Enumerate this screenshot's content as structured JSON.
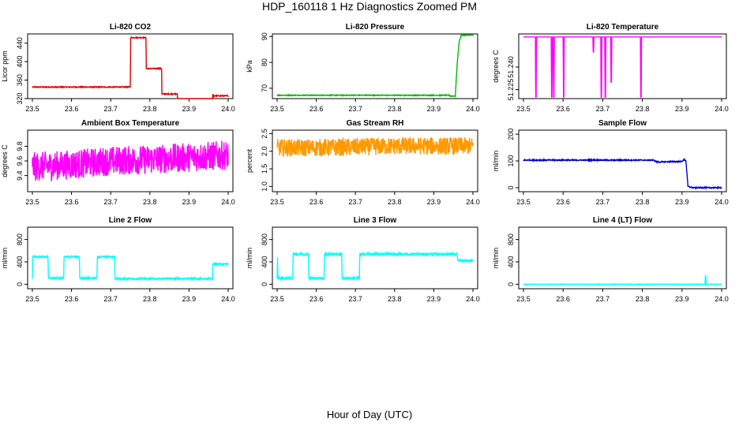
{
  "figure": {
    "title": "HDP_160118  1 Hz Diagnostics Zoomed PM",
    "xlabel": "Hour of Day (UTC)"
  },
  "chart_data": [
    {
      "type": "line",
      "title": "Li-820 CO2",
      "ylabel": "Licor ppm",
      "xlim": [
        23.5,
        24.0
      ],
      "ylim": [
        320,
        460
      ],
      "xticks": [
        23.5,
        23.6,
        23.7,
        23.8,
        23.9,
        24.0
      ],
      "yticks": [
        320,
        360,
        400,
        440
      ],
      "color": "#dd0000",
      "noise": 1,
      "series": [
        {
          "x": [
            23.5,
            23.75,
            23.751,
            23.79,
            23.791,
            23.83,
            23.831,
            23.87,
            23.871,
            23.96,
            23.961,
            23.963,
            23.964,
            24.0
          ],
          "y": [
            345,
            345,
            452,
            452,
            385,
            385,
            330,
            330,
            318,
            318,
            330,
            322,
            326,
            326
          ]
        }
      ]
    },
    {
      "type": "line",
      "title": "Li-820 Pressure",
      "ylabel": "kPa",
      "xlim": [
        23.5,
        24.0
      ],
      "ylim": [
        66,
        91
      ],
      "xticks": [
        23.5,
        23.6,
        23.7,
        23.8,
        23.9,
        24.0
      ],
      "yticks": [
        70,
        80,
        90
      ],
      "color": "#00bb00",
      "noise": 0.15,
      "series": [
        {
          "x": [
            23.5,
            23.94,
            23.941,
            23.955,
            23.96,
            23.965,
            23.97,
            24.0
          ],
          "y": [
            67.3,
            67.3,
            67.0,
            67.0,
            80,
            88,
            90.5,
            90.5
          ]
        }
      ]
    },
    {
      "type": "line",
      "title": "Li-820 Temperature",
      "ylabel": "degrees C",
      "xlim": [
        23.5,
        24.0
      ],
      "ylim": [
        51.219,
        51.262
      ],
      "xticks": [
        23.5,
        23.6,
        23.7,
        23.8,
        23.9,
        24.0
      ],
      "yticks": [
        51.225,
        51.24
      ],
      "ytick_labels": [
        "51.225",
        "51.240"
      ],
      "color": "#ff00ff",
      "noise": 0,
      "series": [
        {
          "x": [
            23.5,
            23.53,
            23.531,
            23.532,
            23.533,
            23.57,
            23.571,
            23.572,
            23.573,
            23.575,
            23.576,
            23.577,
            23.578,
            23.6,
            23.601,
            23.602,
            23.603,
            23.675,
            23.676,
            23.677,
            23.678,
            23.695,
            23.696,
            23.697,
            23.698,
            23.705,
            23.706,
            23.707,
            23.708,
            23.72,
            23.721,
            23.722,
            23.723,
            23.795,
            23.796,
            23.797,
            23.798,
            24.0
          ],
          "y": [
            51.26,
            51.26,
            51.22,
            51.22,
            51.26,
            51.26,
            51.22,
            51.22,
            51.26,
            51.26,
            51.22,
            51.22,
            51.26,
            51.26,
            51.22,
            51.22,
            51.26,
            51.26,
            51.25,
            51.25,
            51.26,
            51.26,
            51.22,
            51.22,
            51.26,
            51.26,
            51.22,
            51.22,
            51.26,
            51.26,
            51.23,
            51.23,
            51.26,
            51.26,
            51.22,
            51.22,
            51.26,
            51.26
          ]
        }
      ]
    },
    {
      "type": "line",
      "title": "Ambient Box Temperature",
      "ylabel": "degrees C",
      "xlim": [
        23.5,
        24.0
      ],
      "ylim": [
        9.18,
        10.02
      ],
      "xticks": [
        23.5,
        23.6,
        23.7,
        23.8,
        23.9,
        24.0
      ],
      "yticks": [
        9.4,
        9.6,
        9.8
      ],
      "color": "#ff00ff",
      "noise": 0.2,
      "series": [
        {
          "x": [
            23.5,
            23.6,
            23.7,
            23.8,
            23.9,
            24.0
          ],
          "y": [
            9.52,
            9.55,
            9.6,
            9.62,
            9.65,
            9.68
          ]
        }
      ]
    },
    {
      "type": "line",
      "title": "Gas Stream RH",
      "ylabel": "percent",
      "xlim": [
        23.5,
        24.0
      ],
      "ylim": [
        0.85,
        2.6
      ],
      "xticks": [
        23.5,
        23.6,
        23.7,
        23.8,
        23.9,
        24.0
      ],
      "yticks": [
        1.0,
        1.5,
        2.0,
        2.5
      ],
      "ytick_labels": [
        "1.0",
        "1.5",
        "2.0",
        "2.5"
      ],
      "color": "#ff9900",
      "noise": 0.25,
      "series": [
        {
          "x": [
            23.5,
            23.6,
            23.7,
            23.8,
            23.9,
            24.0
          ],
          "y": [
            2.1,
            2.1,
            2.12,
            2.15,
            2.15,
            2.15
          ]
        }
      ]
    },
    {
      "type": "line",
      "title": "Sample Flow",
      "ylabel": "ml/min",
      "xlim": [
        23.5,
        24.0
      ],
      "ylim": [
        -15,
        215
      ],
      "xticks": [
        23.5,
        23.6,
        23.7,
        23.8,
        23.9,
        24.0
      ],
      "yticks": [
        0,
        100,
        200
      ],
      "color": "#0000cc",
      "noise": 2,
      "series": [
        {
          "x": [
            23.5,
            23.83,
            23.835,
            23.9,
            23.905,
            23.91,
            23.915,
            23.925,
            24.0
          ],
          "y": [
            103,
            103,
            96,
            98,
            105,
            100,
            5,
            0,
            0
          ]
        }
      ]
    },
    {
      "type": "line",
      "title": "Line 2 Flow",
      "ylabel": "ml/min",
      "xlim": [
        23.5,
        24.0
      ],
      "ylim": [
        -80,
        1020
      ],
      "xticks": [
        23.5,
        23.6,
        23.7,
        23.8,
        23.9,
        24.0
      ],
      "yticks": [
        0,
        400,
        800
      ],
      "color": "#00ffff",
      "noise": 15,
      "series": [
        {
          "x": [
            23.5,
            23.501,
            23.54,
            23.541,
            23.58,
            23.581,
            23.62,
            23.621,
            23.665,
            23.666,
            23.71,
            23.711,
            23.96,
            23.961,
            24.0
          ],
          "y": [
            110,
            490,
            490,
            110,
            110,
            490,
            490,
            110,
            110,
            490,
            490,
            100,
            100,
            360,
            360
          ]
        }
      ]
    },
    {
      "type": "line",
      "title": "Line 3 Flow",
      "ylabel": "ml/min",
      "xlim": [
        23.5,
        24.0
      ],
      "ylim": [
        -80,
        1020
      ],
      "xticks": [
        23.5,
        23.6,
        23.7,
        23.8,
        23.9,
        24.0
      ],
      "yticks": [
        0,
        400,
        800
      ],
      "color": "#00ffff",
      "noise": 20,
      "series": [
        {
          "x": [
            23.5,
            23.501,
            23.502,
            23.54,
            23.541,
            23.58,
            23.581,
            23.62,
            23.621,
            23.665,
            23.666,
            23.71,
            23.711,
            23.96,
            23.961,
            24.0
          ],
          "y": [
            110,
            480,
            110,
            110,
            540,
            540,
            110,
            110,
            540,
            540,
            110,
            110,
            540,
            540,
            420,
            420
          ]
        }
      ]
    },
    {
      "type": "line",
      "title": "Line 4 (LT) Flow",
      "ylabel": "ml/min",
      "xlim": [
        23.5,
        24.0
      ],
      "ylim": [
        -80,
        1020
      ],
      "xticks": [
        23.5,
        23.6,
        23.7,
        23.8,
        23.9,
        24.0
      ],
      "yticks": [
        0,
        400,
        800
      ],
      "color": "#00ffff",
      "noise": 3,
      "series": [
        {
          "x": [
            23.5,
            23.958,
            23.959,
            23.96,
            23.961,
            23.962,
            24.0
          ],
          "y": [
            0,
            0,
            150,
            150,
            0,
            0,
            0
          ]
        }
      ]
    }
  ]
}
